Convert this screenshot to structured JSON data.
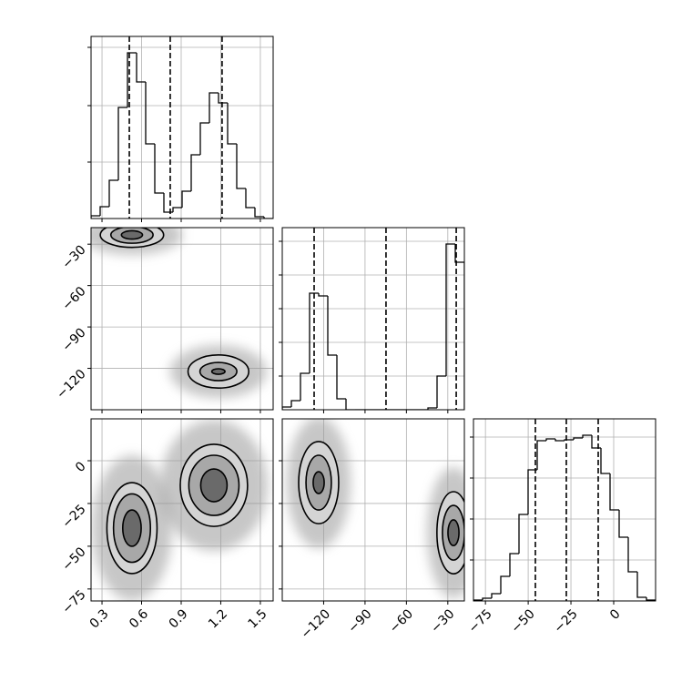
{
  "chart_data": {
    "type": "corner",
    "grid": true,
    "show_hist_tick_labels": false,
    "params": [
      {
        "lim": [
          0.217,
          1.597
        ],
        "ticks": [
          0.3,
          0.6,
          0.9,
          1.2,
          1.5
        ],
        "bins": [
          0.217,
          0.286,
          0.355,
          0.424,
          0.493,
          0.562,
          0.631,
          0.7,
          0.769,
          0.838,
          0.907,
          0.976,
          1.045,
          1.114,
          1.183,
          1.252,
          1.321,
          1.39,
          1.459,
          1.528,
          1.597
        ],
        "counts": [
          3,
          13,
          42,
          122,
          182,
          150,
          82,
          28,
          7,
          12,
          30,
          70,
          105,
          138,
          127,
          82,
          33,
          12,
          2,
          0
        ],
        "hist_lim": [
          0,
          200
        ],
        "hist_ticks": [
          62,
          124,
          188
        ],
        "quantiles": [
          0.507,
          0.817,
          1.21
        ]
      },
      {
        "lim": [
          -150,
          -18
        ],
        "ticks": [
          {
            "value": -120,
            "label": "−120"
          },
          {
            "value": -90,
            "label": "−90"
          },
          {
            "value": -60,
            "label": "−60"
          },
          {
            "value": -30,
            "label": "−30"
          }
        ],
        "bins": [
          -150,
          -143.4,
          -136.8,
          -130.2,
          -123.6,
          -117,
          -110.4,
          -103.8,
          -97.2,
          -90.6,
          -84,
          -77.4,
          -70.8,
          -64.2,
          -57.6,
          -51,
          -44.4,
          -37.8,
          -31.2,
          -24.6,
          -18
        ],
        "counts": [
          3,
          10,
          40,
          128,
          125,
          60,
          12,
          0,
          0,
          0,
          0,
          0,
          0,
          0,
          0,
          0,
          2,
          37,
          182,
          162
        ],
        "hist_lim": [
          0,
          200
        ],
        "hist_ticks": [
          37,
          74,
          111,
          148,
          185
        ],
        "quantiles": [
          -126.9,
          -74.8,
          -23.9
        ]
      },
      {
        "lim": [
          -82,
          24.5
        ],
        "ticks": [
          {
            "value": -75,
            "label": "−75"
          },
          {
            "value": -50,
            "label": "−50"
          },
          {
            "value": -25,
            "label": "−25"
          },
          0
        ],
        "bins": [
          -82,
          -76.675,
          -71.35,
          -66.025,
          -60.7,
          -55.375,
          -50.05,
          -44.725,
          -39.4,
          -34.075,
          -28.75,
          -23.425,
          -18.1,
          -12.775,
          -7.45,
          -2.125,
          3.2,
          8.525,
          13.85,
          19.175,
          24.5
        ],
        "counts": [
          1,
          3,
          8,
          27,
          52,
          95,
          144,
          176,
          178,
          176,
          177,
          179,
          182,
          168,
          140,
          100,
          70,
          32,
          4,
          1
        ],
        "hist_lim": [
          0,
          200
        ],
        "hist_ticks": [
          45,
          90,
          135,
          180
        ],
        "quantiles": [
          -45.8,
          -27.7,
          -9.05
        ]
      }
    ],
    "lower": [
      [
        {
          "clusters": [
            {
              "center": [
                0.527,
                -23.3
              ],
              "contours": [
                [
                  0.24,
                  9
                ],
                [
                  0.16,
                  6
                ],
                [
                  0.08,
                  3
                ]
              ]
            },
            {
              "center": [
                1.182,
                -122.3
              ],
              "contours": [
                [
                  0.23,
                  12
                ],
                [
                  0.14,
                  6.6
                ],
                [
                  0.05,
                  2
                ]
              ]
            }
          ]
        }
      ],
      [
        {
          "clusters": [
            {
              "center": [
                0.527,
                -39.4
              ],
              "contours": [
                [
                  0.19,
                  26.6
                ],
                [
                  0.14,
                  20
                ],
                [
                  0.07,
                  10.6
                ]
              ]
            },
            {
              "center": [
                1.148,
                -14.4
              ],
              "contours": [
                [
                  0.255,
                  24
                ],
                [
                  0.19,
                  17.6
                ],
                [
                  0.1,
                  9.6
                ]
              ]
            }
          ]
        },
        {
          "clusters": [
            {
              "center": [
                -123.6,
                -12.8
              ],
              "contours": [
                [
                  14.5,
                  24
                ],
                [
                  9.2,
                  16
                ],
                [
                  4,
                  6.4
                ]
              ]
            },
            {
              "center": [
                -25.9,
                -42.1
              ],
              "contours": [
                [
                  12,
                  24
                ],
                [
                  8,
                  16
                ],
                [
                  4,
                  7.5
                ]
              ]
            }
          ]
        }
      ]
    ]
  }
}
